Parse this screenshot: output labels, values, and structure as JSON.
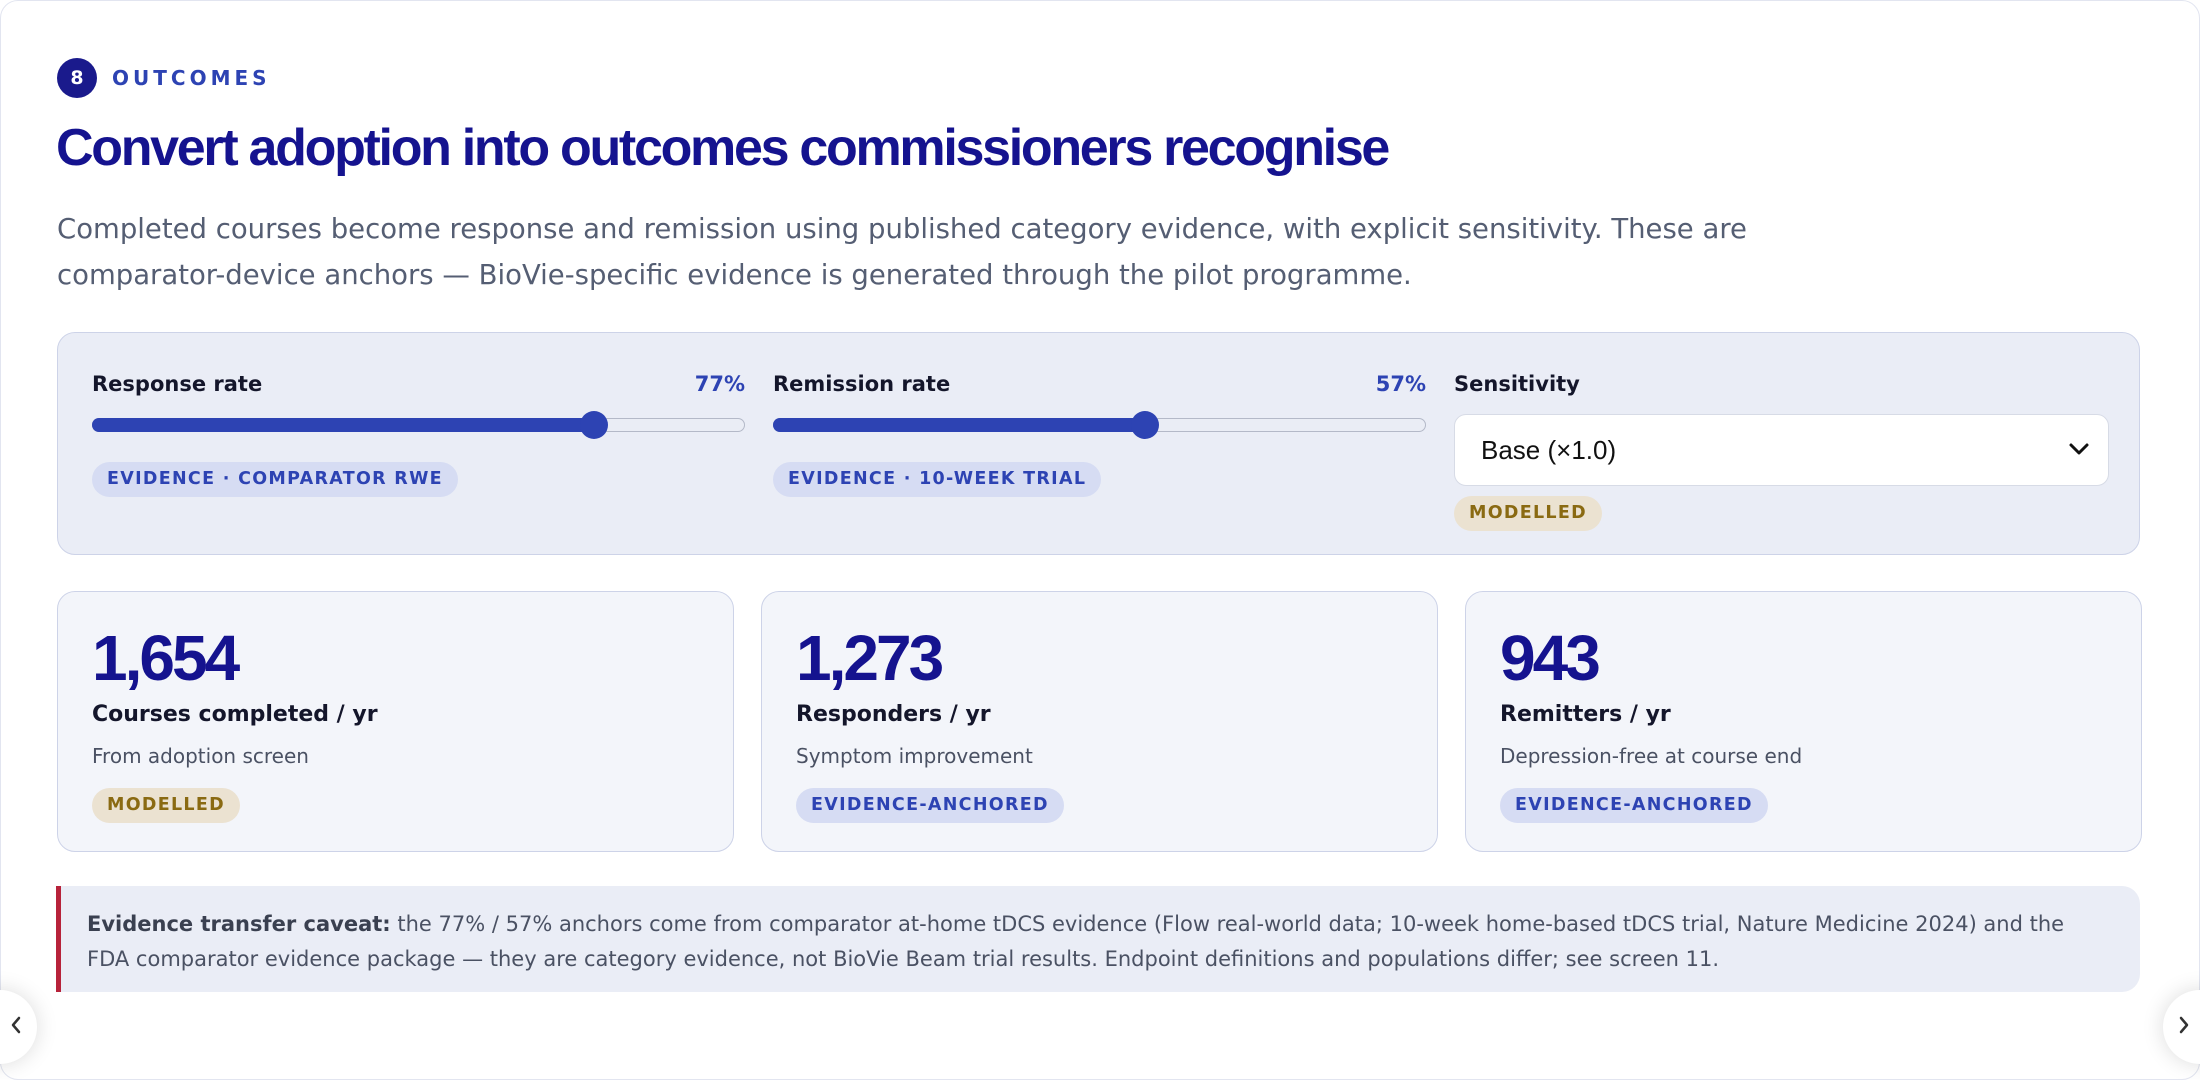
{
  "section": {
    "number": "8",
    "label": "OUTCOMES"
  },
  "title": "Convert adoption into outcomes commissioners recognise",
  "subtitle": "Completed courses become response and remission using published category evidence, with explicit sensitivity. These are comparator-device anchors — BioVie-specific evidence is generated through the pilot programme.",
  "controls": {
    "response": {
      "label": "Response rate",
      "value": "77%",
      "level": 0.77,
      "chip": "EVIDENCE · COMPARATOR RWE"
    },
    "remission": {
      "label": "Remission rate",
      "value": "57%",
      "level": 0.57,
      "chip": "EVIDENCE · 10-WEEK TRIAL"
    },
    "sensitivity": {
      "label": "Sensitivity",
      "selected": "Base (×1.0)",
      "chip": "MODELLED"
    }
  },
  "cards": [
    {
      "value": "1,654",
      "label": "Courses completed / yr",
      "sub": "From adoption screen",
      "chip": "MODELLED",
      "chip_style": "tan"
    },
    {
      "value": "1,273",
      "label": "Responders / yr",
      "sub": "Symptom improvement",
      "chip": "EVIDENCE-ANCHORED",
      "chip_style": "blue"
    },
    {
      "value": "943",
      "label": "Remitters / yr",
      "sub": "Depression-free at course end",
      "chip": "EVIDENCE-ANCHORED",
      "chip_style": "blue"
    }
  ],
  "caveat": {
    "heading": "Evidence transfer caveat:",
    "text": " the 77% / 57% anchors come from comparator at-home tDCS evidence (Flow real-world data; 10-week home-based tDCS trial, Nature Medicine 2024) and the FDA comparator evidence package — they are category evidence, not BioVie Beam trial results. Endpoint definitions and populations differ; see screen 11."
  },
  "colors": {
    "brand": "#15138f",
    "accent": "#2d43b3",
    "caveat_border": "#b7223a"
  },
  "icons": {
    "select": "chevron-down-icon",
    "prev": "chevron-left-icon",
    "next": "chevron-right-icon"
  }
}
